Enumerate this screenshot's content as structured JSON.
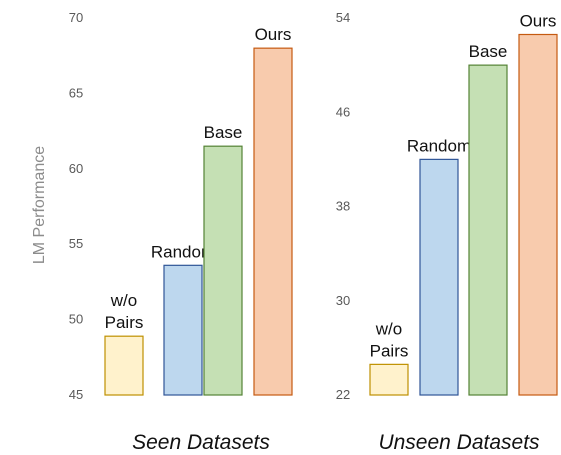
{
  "chart_data": [
    {
      "type": "bar",
      "xlabel": "Seen Datasets",
      "ylabel": "LM Performance",
      "ylim": [
        45,
        70
      ],
      "yticks": [
        45,
        50,
        55,
        60,
        65,
        70
      ],
      "grid": false,
      "categories": [
        "w/o Pairs",
        "Random",
        "Base",
        "Ours"
      ],
      "category_label_lines": [
        [
          "w/o",
          "Pairs"
        ],
        [
          "Random"
        ],
        [
          "Base"
        ],
        [
          "Ours"
        ]
      ],
      "values": [
        48.9,
        53.6,
        61.5,
        68.0
      ],
      "colors": [
        "#FFF2CC",
        "#BDD7EE",
        "#C5E0B4",
        "#F8CBAD"
      ],
      "edge_colors": [
        "#BF9000",
        "#2F5597",
        "#548235",
        "#C55A11"
      ]
    },
    {
      "type": "bar",
      "xlabel": "Unseen Datasets",
      "ylabel": "",
      "ylim": [
        22,
        54
      ],
      "yticks": [
        22,
        30,
        38,
        46,
        54
      ],
      "grid": false,
      "categories": [
        "w/o Pairs",
        "Random",
        "Base",
        "Ours"
      ],
      "category_label_lines": [
        [
          "w/o",
          "Pairs"
        ],
        [
          "Random"
        ],
        [
          "Base"
        ],
        [
          "Ours"
        ]
      ],
      "values": [
        24.6,
        42.0,
        50.0,
        52.6
      ],
      "colors": [
        "#FFF2CC",
        "#BDD7EE",
        "#C5E0B4",
        "#F8CBAD"
      ],
      "edge_colors": [
        "#BF9000",
        "#2F5597",
        "#548235",
        "#C55A11"
      ]
    }
  ]
}
